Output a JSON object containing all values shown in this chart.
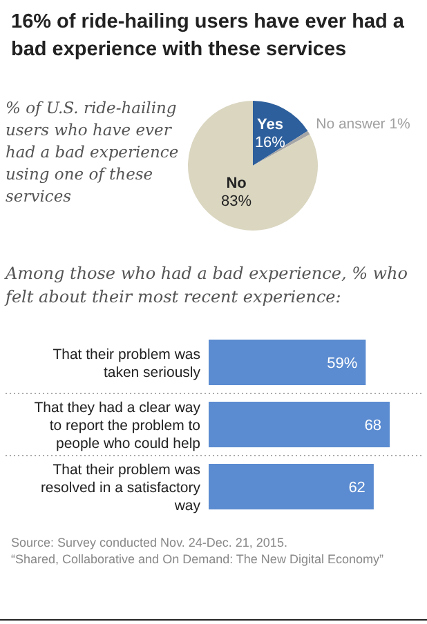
{
  "chart_data": [
    {
      "type": "pie",
      "title": "16% of ride-hailing users have ever had a bad experience with these services",
      "subtitle": "% of U.S. ride-hailing users who have ever had a bad experience using one of these services",
      "categories": [
        "Yes",
        "No answer",
        "No"
      ],
      "values": [
        16,
        1,
        83
      ],
      "value_labels": [
        "16%",
        "1%",
        "83%"
      ],
      "colors": [
        "#2d5f9c",
        "#a6a6a6",
        "#dad6c0"
      ]
    },
    {
      "type": "bar",
      "orientation": "horizontal",
      "title": "Among those who had a bad experience, % who felt about their most recent experience:",
      "categories": [
        "That their problem was taken seriously",
        "That they had a clear way to report the problem to people who could help",
        "That their problem was resolved in a satisfactory way"
      ],
      "values": [
        59,
        68,
        62
      ],
      "value_labels": [
        "59%",
        "68",
        "62"
      ],
      "color": "#5b8bd0",
      "annotations": [
        "Source: Survey conducted Nov. 24-Dec. 21, 2015.",
        "“Shared, Collaborative and On Demand: The New Digital Economy”"
      ]
    }
  ]
}
